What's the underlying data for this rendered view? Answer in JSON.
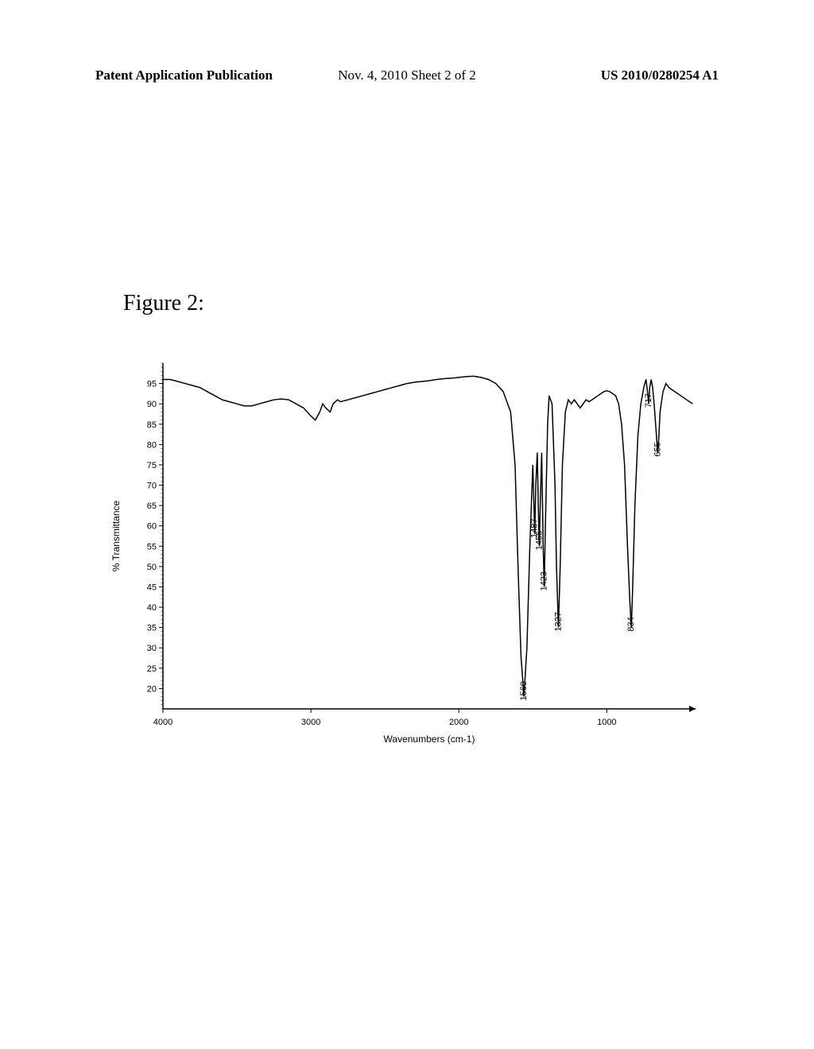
{
  "header": {
    "left": "Patent Application Publication",
    "center": "Nov. 4, 2010   Sheet 2 of 2",
    "right": "US 2010/0280254 A1"
  },
  "figure": {
    "title": "Figure 2:"
  },
  "chart": {
    "type": "line",
    "xlabel": "Wavenumbers (cm-1)",
    "ylabel": "% Transmittance",
    "xlim": [
      4000,
      400
    ],
    "ylim": [
      15,
      100
    ],
    "xticks": [
      4000,
      3000,
      2000,
      1000
    ],
    "yticks": [
      20,
      25,
      30,
      35,
      40,
      45,
      50,
      55,
      60,
      65,
      70,
      75,
      80,
      85,
      90,
      95
    ],
    "axis_fontsize": 12,
    "tick_fontsize": 11,
    "line_color": "#000000",
    "line_width": 1.5,
    "background_color": "#ffffff",
    "peak_labels": [
      {
        "wavenumber": 1560,
        "transmittance": 18,
        "text": "1560"
      },
      {
        "wavenumber": 1487,
        "transmittance": 58,
        "text": "1487"
      },
      {
        "wavenumber": 1456,
        "transmittance": 55,
        "text": "1456"
      },
      {
        "wavenumber": 1423,
        "transmittance": 45,
        "text": "1423"
      },
      {
        "wavenumber": 1327,
        "transmittance": 35,
        "text": "1327"
      },
      {
        "wavenumber": 834,
        "transmittance": 35,
        "text": "834"
      },
      {
        "wavenumber": 717,
        "transmittance": 90,
        "text": "717"
      },
      {
        "wavenumber": 655,
        "transmittance": 78,
        "text": "655"
      }
    ],
    "spectrum_data": [
      {
        "x": 4000,
        "y": 96
      },
      {
        "x": 3950,
        "y": 96
      },
      {
        "x": 3900,
        "y": 95.5
      },
      {
        "x": 3850,
        "y": 95
      },
      {
        "x": 3800,
        "y": 94.5
      },
      {
        "x": 3750,
        "y": 94
      },
      {
        "x": 3700,
        "y": 93
      },
      {
        "x": 3650,
        "y": 92
      },
      {
        "x": 3600,
        "y": 91
      },
      {
        "x": 3550,
        "y": 90.5
      },
      {
        "x": 3500,
        "y": 90
      },
      {
        "x": 3450,
        "y": 89.5
      },
      {
        "x": 3400,
        "y": 89.5
      },
      {
        "x": 3350,
        "y": 90
      },
      {
        "x": 3300,
        "y": 90.5
      },
      {
        "x": 3250,
        "y": 91
      },
      {
        "x": 3200,
        "y": 91.2
      },
      {
        "x": 3150,
        "y": 91
      },
      {
        "x": 3100,
        "y": 90
      },
      {
        "x": 3050,
        "y": 89
      },
      {
        "x": 3000,
        "y": 87
      },
      {
        "x": 2970,
        "y": 86
      },
      {
        "x": 2940,
        "y": 88
      },
      {
        "x": 2920,
        "y": 90
      },
      {
        "x": 2900,
        "y": 89
      },
      {
        "x": 2870,
        "y": 88
      },
      {
        "x": 2850,
        "y": 90
      },
      {
        "x": 2820,
        "y": 91
      },
      {
        "x": 2800,
        "y": 90.5
      },
      {
        "x": 2750,
        "y": 91
      },
      {
        "x": 2700,
        "y": 91.5
      },
      {
        "x": 2650,
        "y": 92
      },
      {
        "x": 2600,
        "y": 92.5
      },
      {
        "x": 2550,
        "y": 93
      },
      {
        "x": 2500,
        "y": 93.5
      },
      {
        "x": 2450,
        "y": 94
      },
      {
        "x": 2400,
        "y": 94.5
      },
      {
        "x": 2350,
        "y": 95
      },
      {
        "x": 2300,
        "y": 95.3
      },
      {
        "x": 2250,
        "y": 95.5
      },
      {
        "x": 2200,
        "y": 95.7
      },
      {
        "x": 2150,
        "y": 96
      },
      {
        "x": 2100,
        "y": 96.2
      },
      {
        "x": 2050,
        "y": 96.3
      },
      {
        "x": 2000,
        "y": 96.5
      },
      {
        "x": 1950,
        "y": 96.7
      },
      {
        "x": 1900,
        "y": 96.8
      },
      {
        "x": 1850,
        "y": 96.5
      },
      {
        "x": 1800,
        "y": 96
      },
      {
        "x": 1750,
        "y": 95
      },
      {
        "x": 1700,
        "y": 93
      },
      {
        "x": 1650,
        "y": 88
      },
      {
        "x": 1620,
        "y": 75
      },
      {
        "x": 1600,
        "y": 50
      },
      {
        "x": 1580,
        "y": 28
      },
      {
        "x": 1560,
        "y": 18
      },
      {
        "x": 1540,
        "y": 30
      },
      {
        "x": 1520,
        "y": 55
      },
      {
        "x": 1500,
        "y": 75
      },
      {
        "x": 1490,
        "y": 62
      },
      {
        "x": 1487,
        "y": 58
      },
      {
        "x": 1480,
        "y": 70
      },
      {
        "x": 1470,
        "y": 78
      },
      {
        "x": 1460,
        "y": 60
      },
      {
        "x": 1456,
        "y": 55
      },
      {
        "x": 1450,
        "y": 65
      },
      {
        "x": 1440,
        "y": 78
      },
      {
        "x": 1430,
        "y": 55
      },
      {
        "x": 1423,
        "y": 45
      },
      {
        "x": 1415,
        "y": 60
      },
      {
        "x": 1400,
        "y": 85
      },
      {
        "x": 1390,
        "y": 92
      },
      {
        "x": 1370,
        "y": 90
      },
      {
        "x": 1350,
        "y": 70
      },
      {
        "x": 1340,
        "y": 50
      },
      {
        "x": 1327,
        "y": 35
      },
      {
        "x": 1315,
        "y": 50
      },
      {
        "x": 1300,
        "y": 75
      },
      {
        "x": 1280,
        "y": 88
      },
      {
        "x": 1260,
        "y": 91
      },
      {
        "x": 1240,
        "y": 90
      },
      {
        "x": 1220,
        "y": 91
      },
      {
        "x": 1200,
        "y": 90
      },
      {
        "x": 1180,
        "y": 89
      },
      {
        "x": 1160,
        "y": 90
      },
      {
        "x": 1140,
        "y": 91
      },
      {
        "x": 1120,
        "y": 90.5
      },
      {
        "x": 1100,
        "y": 91
      },
      {
        "x": 1080,
        "y": 91.5
      },
      {
        "x": 1060,
        "y": 92
      },
      {
        "x": 1040,
        "y": 92.5
      },
      {
        "x": 1020,
        "y": 93
      },
      {
        "x": 1000,
        "y": 93.2
      },
      {
        "x": 980,
        "y": 93
      },
      {
        "x": 960,
        "y": 92.5
      },
      {
        "x": 940,
        "y": 92
      },
      {
        "x": 920,
        "y": 90
      },
      {
        "x": 900,
        "y": 85
      },
      {
        "x": 880,
        "y": 75
      },
      {
        "x": 860,
        "y": 55
      },
      {
        "x": 845,
        "y": 42
      },
      {
        "x": 834,
        "y": 35
      },
      {
        "x": 825,
        "y": 45
      },
      {
        "x": 810,
        "y": 65
      },
      {
        "x": 790,
        "y": 82
      },
      {
        "x": 770,
        "y": 90
      },
      {
        "x": 750,
        "y": 94
      },
      {
        "x": 735,
        "y": 96
      },
      {
        "x": 725,
        "y": 93
      },
      {
        "x": 717,
        "y": 90
      },
      {
        "x": 710,
        "y": 94
      },
      {
        "x": 700,
        "y": 96
      },
      {
        "x": 690,
        "y": 94
      },
      {
        "x": 680,
        "y": 90
      },
      {
        "x": 670,
        "y": 85
      },
      {
        "x": 660,
        "y": 80
      },
      {
        "x": 655,
        "y": 78
      },
      {
        "x": 648,
        "y": 82
      },
      {
        "x": 640,
        "y": 88
      },
      {
        "x": 620,
        "y": 93
      },
      {
        "x": 600,
        "y": 95
      },
      {
        "x": 580,
        "y": 94
      },
      {
        "x": 560,
        "y": 93.5
      },
      {
        "x": 540,
        "y": 93
      },
      {
        "x": 520,
        "y": 92.5
      },
      {
        "x": 500,
        "y": 92
      },
      {
        "x": 480,
        "y": 91.5
      },
      {
        "x": 460,
        "y": 91
      },
      {
        "x": 440,
        "y": 90.5
      },
      {
        "x": 420,
        "y": 90
      }
    ]
  }
}
